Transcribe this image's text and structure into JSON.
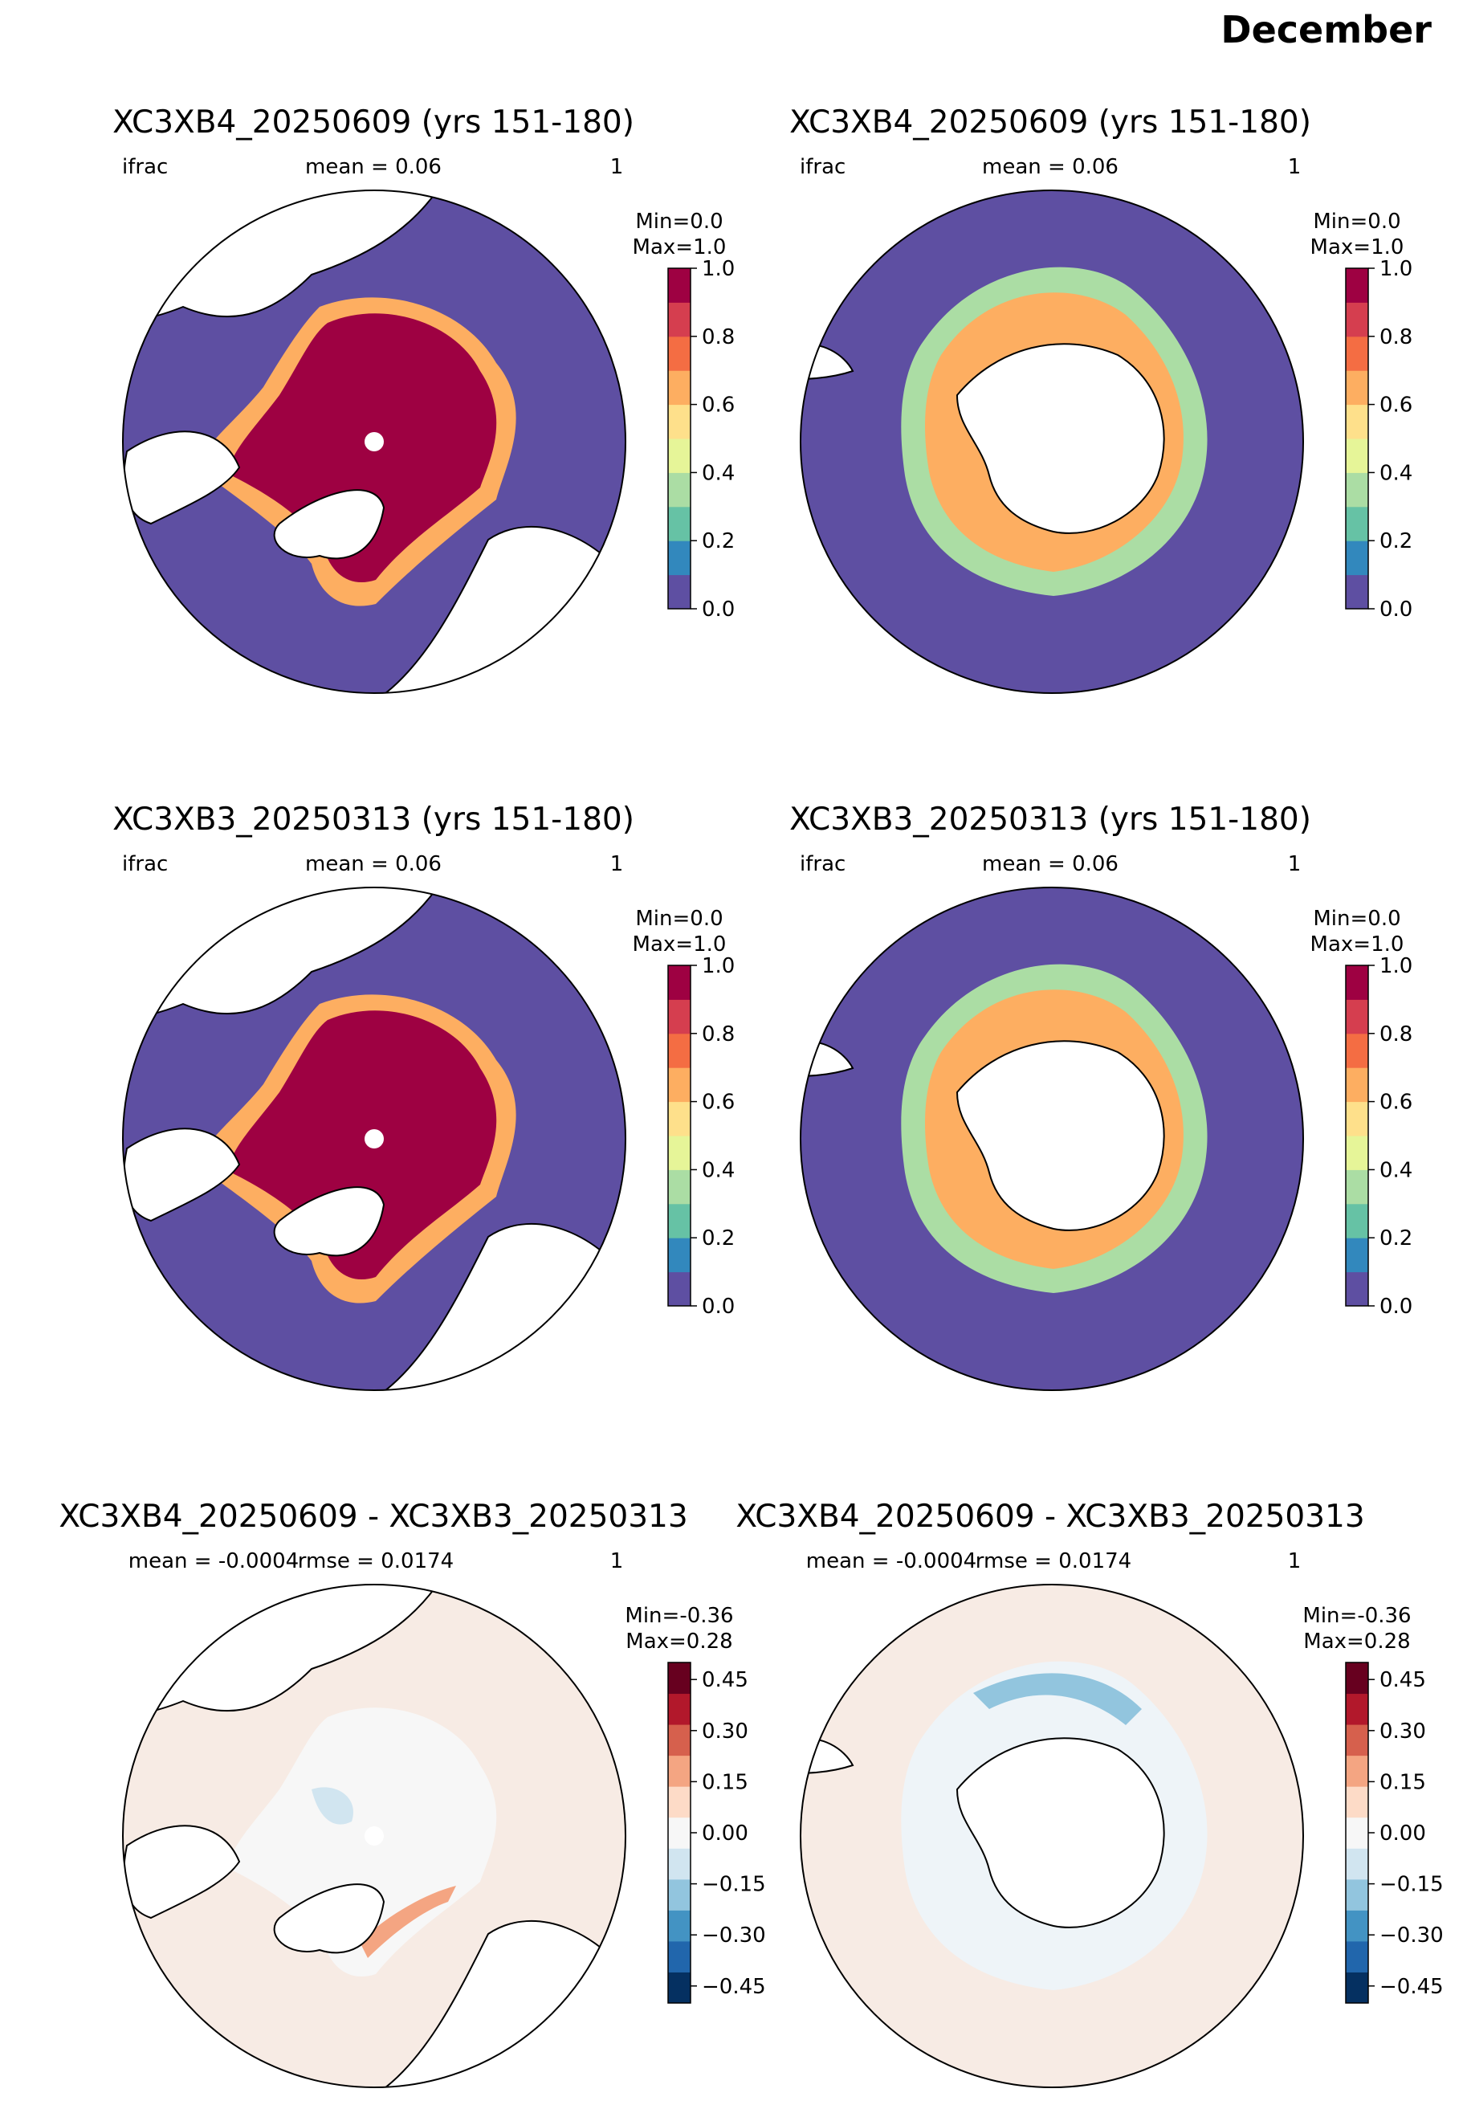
{
  "suptitle": "December",
  "panels": [
    {
      "id": "nh-b4",
      "title": "XC3XB4_20250609 (yrs 151-180)",
      "var": "ifrac",
      "stat": "mean = 0.06",
      "rmse": "",
      "units": "1",
      "minmax": [
        "Min=0.0",
        "Max=1.0"
      ],
      "hemisphere": "north",
      "field": "ice-fraction"
    },
    {
      "id": "sh-b4",
      "title": "XC3XB4_20250609 (yrs 151-180)",
      "var": "ifrac",
      "stat": "mean = 0.06",
      "rmse": "",
      "units": "1",
      "minmax": [
        "Min=0.0",
        "Max=1.0"
      ],
      "hemisphere": "south",
      "field": "ice-fraction"
    },
    {
      "id": "nh-b3",
      "title": "XC3XB3_20250313 (yrs 151-180)",
      "var": "ifrac",
      "stat": "mean = 0.06",
      "rmse": "",
      "units": "1",
      "minmax": [
        "Min=0.0",
        "Max=1.0"
      ],
      "hemisphere": "north",
      "field": "ice-fraction"
    },
    {
      "id": "sh-b3",
      "title": "XC3XB3_20250313 (yrs 151-180)",
      "var": "ifrac",
      "stat": "mean = 0.06",
      "rmse": "",
      "units": "1",
      "minmax": [
        "Min=0.0",
        "Max=1.0"
      ],
      "hemisphere": "south",
      "field": "ice-fraction"
    },
    {
      "id": "nh-diff",
      "title": "XC3XB4_20250609 - XC3XB3_20250313",
      "var": "",
      "stat": "mean = -0.0004",
      "rmse": "rmse = 0.0174",
      "units": "1",
      "minmax": [
        "Min=-0.36",
        "Max=0.28"
      ],
      "hemisphere": "north",
      "field": "difference"
    },
    {
      "id": "sh-diff",
      "title": "XC3XB4_20250609 - XC3XB3_20250313",
      "var": "",
      "stat": "mean = -0.0004",
      "rmse": "rmse = 0.0174",
      "units": "1",
      "minmax": [
        "Min=-0.36",
        "Max=0.28"
      ],
      "hemisphere": "south",
      "field": "difference"
    }
  ],
  "colorbars": {
    "ice": {
      "ticks": [
        "0.0",
        "0.2",
        "0.4",
        "0.6",
        "0.8",
        "1.0"
      ],
      "levels": [
        0.0,
        0.1,
        0.2,
        0.3,
        0.4,
        0.5,
        0.6,
        0.7,
        0.8,
        0.9,
        1.0
      ],
      "colors": [
        "#5e4fa2",
        "#3288bd",
        "#66c2a5",
        "#abdda4",
        "#e6f598",
        "#fee08b",
        "#fdae61",
        "#f46d43",
        "#d53e4f",
        "#9e0142"
      ]
    },
    "diff": {
      "ticks": [
        "0.45",
        "0.30",
        "0.15",
        "0.00",
        "−0.15",
        "−0.30",
        "−0.45"
      ],
      "tick_values": [
        0.45,
        0.3,
        0.15,
        0.0,
        -0.15,
        -0.3,
        -0.45
      ],
      "range": [
        -0.5,
        0.5
      ],
      "colors": [
        "#053061",
        "#2166ac",
        "#4393c3",
        "#92c5de",
        "#d1e5f0",
        "#f7f7f7",
        "#fddbc7",
        "#f4a582",
        "#d6604d",
        "#b2182b",
        "#67001f"
      ]
    }
  },
  "map_colors": {
    "ocean_open": "#5e4fa2",
    "ice_full": "#9e0142",
    "land": "#ffffff",
    "diff_background": "#f7ebe4",
    "diff_near_zero": "#f7f7f7"
  }
}
